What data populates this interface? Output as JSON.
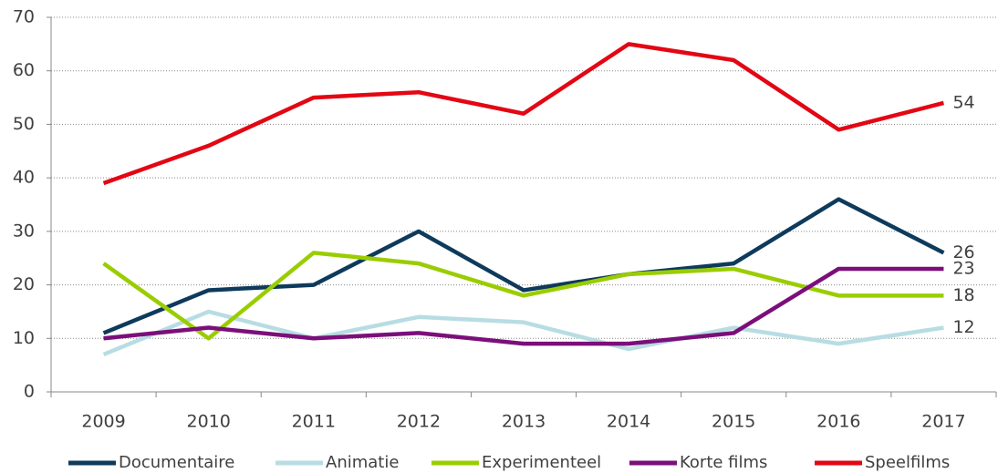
{
  "chart_data": {
    "type": "line",
    "categories": [
      "2009",
      "2010",
      "2011",
      "2012",
      "2013",
      "2014",
      "2015",
      "2016",
      "2017"
    ],
    "series": [
      {
        "name": "Documentaire",
        "color": "#0e3a5c",
        "values": [
          11,
          19,
          20,
          30,
          19,
          22,
          24,
          36,
          26
        ]
      },
      {
        "name": "Animatie",
        "color": "#b7dde3",
        "values": [
          7,
          15,
          10,
          14,
          13,
          8,
          12,
          9,
          12
        ]
      },
      {
        "name": "Experimenteel",
        "color": "#9acd00",
        "values": [
          24,
          10,
          26,
          24,
          18,
          22,
          23,
          18,
          18
        ]
      },
      {
        "name": "Korte films",
        "color": "#7b0f7a",
        "values": [
          10,
          12,
          10,
          11,
          9,
          9,
          11,
          23,
          23
        ]
      },
      {
        "name": "Speelfilms",
        "color": "#e30613",
        "values": [
          39,
          46,
          55,
          56,
          52,
          65,
          62,
          49,
          54
        ]
      }
    ],
    "ylim": [
      0,
      70
    ],
    "yticks": [
      0,
      10,
      20,
      30,
      40,
      50,
      60,
      70
    ],
    "grid": true,
    "legend": "bottom"
  }
}
